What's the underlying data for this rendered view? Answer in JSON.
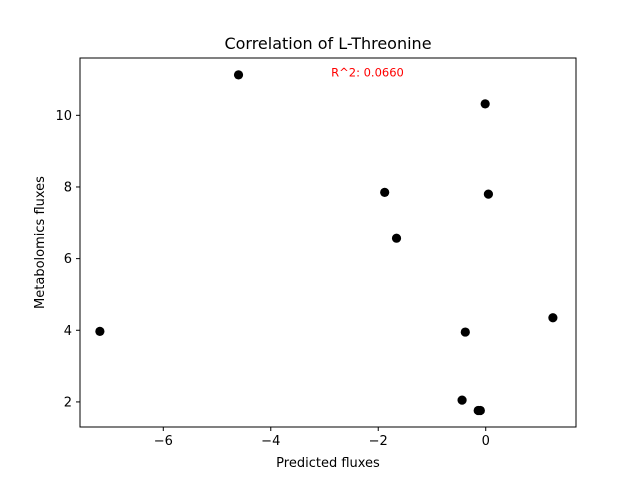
{
  "chart_data": {
    "type": "scatter",
    "title": "Correlation of L-Threonine",
    "xlabel": "Predicted fluxes",
    "ylabel": "Metabolomics fluxes",
    "xlim": [
      -7.55,
      1.68
    ],
    "ylim": [
      1.3,
      11.6
    ],
    "xticks": [
      -6,
      -4,
      -2,
      0
    ],
    "xtick_labels": [
      "−6",
      "−4",
      "−2",
      "0"
    ],
    "yticks": [
      2,
      4,
      6,
      8,
      10
    ],
    "ytick_labels": [
      "2",
      "4",
      "6",
      "8",
      "10"
    ],
    "grid": false,
    "legend": "none",
    "marker_color": "#000000",
    "annotation": {
      "text": "R^2: 0.0660",
      "color": "#ff0000",
      "x": -2.2,
      "y": 11.2
    },
    "points": [
      {
        "x": -7.18,
        "y": 3.97
      },
      {
        "x": -4.6,
        "y": 11.13
      },
      {
        "x": -1.88,
        "y": 7.85
      },
      {
        "x": -1.66,
        "y": 6.57
      },
      {
        "x": -0.01,
        "y": 10.32
      },
      {
        "x": 0.05,
        "y": 7.8
      },
      {
        "x": -0.38,
        "y": 3.95
      },
      {
        "x": 1.25,
        "y": 4.35
      },
      {
        "x": -0.44,
        "y": 2.05
      },
      {
        "x": -0.14,
        "y": 1.76
      },
      {
        "x": -0.1,
        "y": 1.76
      }
    ]
  }
}
